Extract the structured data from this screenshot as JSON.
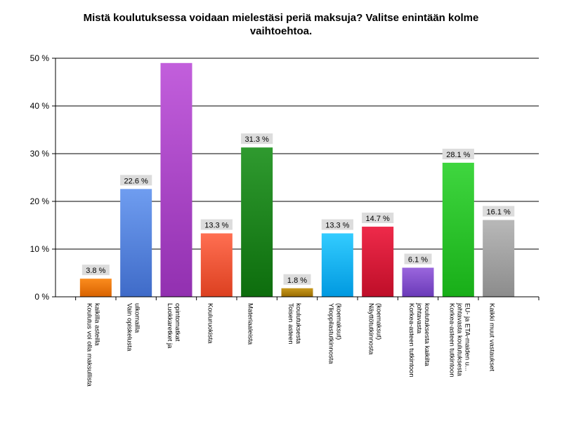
{
  "chart_data": {
    "type": "bar",
    "title_lines": [
      "Mistä koulutuksessa voidaan mielestäsi periä maksuja? Valitse enintään kolme",
      "vaihtoehtoa."
    ],
    "categories": [
      "Koulutus voi olla maksullista kaikilla asteilla",
      "Vain opiskelusta ulkomailla",
      "Luokkaretket ja opintomatkat",
      "Kouluruokista",
      "Materiaaleista",
      "Toisen asteen koulutuksesta",
      "Ylioppilastutkinnosta (koemaksut)",
      "Näyttötutkinnosta (koemaksut)",
      "Korkea-asteen tutkintoon johtavasta koulutuksesta kaikilta",
      "Korkea-asteen tutkintoon johtavasta koulutuksesta EU- ja ETA-maiden u...",
      "Kaikki muut vastaukset"
    ],
    "category_label_lines": [
      [
        "Koulutus voi olla maksullista",
        "kaikilla asteilla"
      ],
      [
        "Vain opiskelusta",
        "ulkomailla"
      ],
      [
        "Luokkaretket ja",
        "opintomatkat"
      ],
      [
        "Kouluruokista"
      ],
      [
        "Materiaaleista"
      ],
      [
        "Toisen asteen",
        "koulutuksesta"
      ],
      [
        "Ylioppilastutkinnosta",
        "(koemaksut)"
      ],
      [
        "Näyttötutkinnosta",
        "(koemaksut)"
      ],
      [
        "Korkea-asteen tutkintoon",
        "johtavasta",
        "koulutuksesta kaikilta"
      ],
      [
        "Korkea-asteen tutkintoon",
        "johtavasta koulutuksesta",
        "EU- ja ETA-maiden u..."
      ],
      [
        "Kaikki muut vastaukset"
      ]
    ],
    "values": [
      3.8,
      22.6,
      49.0,
      13.3,
      31.3,
      1.8,
      13.3,
      14.7,
      6.1,
      28.1,
      16.1
    ],
    "data_labels": [
      "3.8 %",
      "22.6 %",
      "",
      "13.3 %",
      "31.3 %",
      "1.8 %",
      "13.3 %",
      "14.7 %",
      "6.1 %",
      "28.1 %",
      "16.1 %"
    ],
    "colors": [
      [
        "#fb8c1e",
        "#d86200"
      ],
      [
        "#6f9df0",
        "#3f6bc8"
      ],
      [
        "#c25fdc",
        "#9230b0"
      ],
      [
        "#ff6f52",
        "#dc4020"
      ],
      [
        "#2f9a2f",
        "#0d6d0d"
      ],
      [
        "#c89a1e",
        "#996a00"
      ],
      [
        "#33ccff",
        "#0099e0"
      ],
      [
        "#ee2a4a",
        "#be0e28"
      ],
      [
        "#9a66dd",
        "#6a3ab8"
      ],
      [
        "#3fd63f",
        "#18ae18"
      ],
      [
        "#b8b8b8",
        "#8c8c8c"
      ]
    ],
    "ylim": [
      0,
      50
    ],
    "yticks": [
      0,
      10,
      20,
      30,
      40,
      50
    ],
    "ytick_labels": [
      "0 %",
      "10 %",
      "20 %",
      "30 %",
      "40 %",
      "50 %"
    ],
    "xlabel": "",
    "ylabel": "",
    "grid": true
  }
}
